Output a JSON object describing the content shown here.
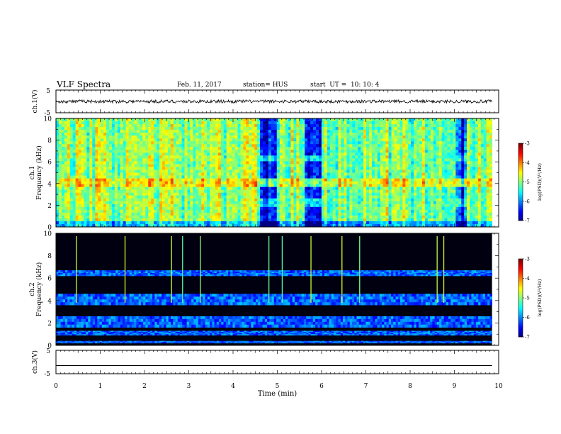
{
  "header": {
    "title": "VLF Spectra",
    "date": "Feb. 11, 2017",
    "station": "station= HUS",
    "start": "start  UT =  10: 10: 4"
  },
  "chart_data": [
    {
      "type": "line",
      "panel": "ch1-waveform",
      "ylabel": "ch.1(V)",
      "ylim": [
        -5,
        5
      ],
      "yticks": [
        "5",
        "-5"
      ],
      "approx_level": 0,
      "approx_amplitude": 0.7,
      "xlim": [
        0,
        10
      ]
    },
    {
      "type": "heatmap",
      "panel": "ch1-spectrogram",
      "ylabel": "ch.1\nFrequency (kHz)",
      "ylim": [
        0,
        10
      ],
      "yticks": [
        "0",
        "2",
        "4",
        "6",
        "8",
        "10"
      ],
      "data_end_min": 9.85,
      "background_log_psd": -4.8,
      "quiet_intervals_min": [
        [
          4.6,
          5.0
        ],
        [
          5.65,
          6.0
        ],
        [
          9.0,
          9.3
        ]
      ],
      "colorbar": {
        "label": "log(PSD)(V²/Hz)",
        "range": [
          -7,
          -3
        ],
        "ticks": [
          "-3",
          "-4",
          "-5",
          "-6",
          "-7"
        ]
      }
    },
    {
      "type": "heatmap",
      "panel": "ch2-spectrogram",
      "ylabel": "ch.2\nFrequency (kHz)",
      "ylim": [
        0,
        10
      ],
      "yticks": [
        "0",
        "2",
        "4",
        "6",
        "8",
        "10"
      ],
      "data_end_min": 9.85,
      "bands_khz": [
        [
          0.2,
          0.4
        ],
        [
          0.9,
          1.3
        ],
        [
          1.6,
          2.6
        ],
        [
          3.6,
          4.6
        ],
        [
          6.2,
          6.7
        ]
      ],
      "spikes_min": [
        0.45,
        1.55,
        2.6,
        2.85,
        3.25,
        4.8,
        5.1,
        5.75,
        6.45,
        6.85,
        8.6,
        8.75
      ],
      "colorbar": {
        "label": "log(PSD)(V²/Hz)",
        "range": [
          -7,
          -3
        ],
        "ticks": [
          "-3",
          "-4",
          "-5",
          "-6",
          "-7"
        ]
      }
    },
    {
      "type": "line",
      "panel": "ch3-waveform",
      "ylabel": "ch.3(V)",
      "ylim": [
        -5,
        5
      ],
      "yticks": [
        "5",
        "-5"
      ],
      "approx_level": -1.5,
      "xlim": [
        0,
        10
      ]
    }
  ],
  "xaxis": {
    "label": "Time  (min)",
    "ticks": [
      "0",
      "1",
      "2",
      "3",
      "4",
      "5",
      "6",
      "7",
      "8",
      "9",
      "10"
    ]
  }
}
